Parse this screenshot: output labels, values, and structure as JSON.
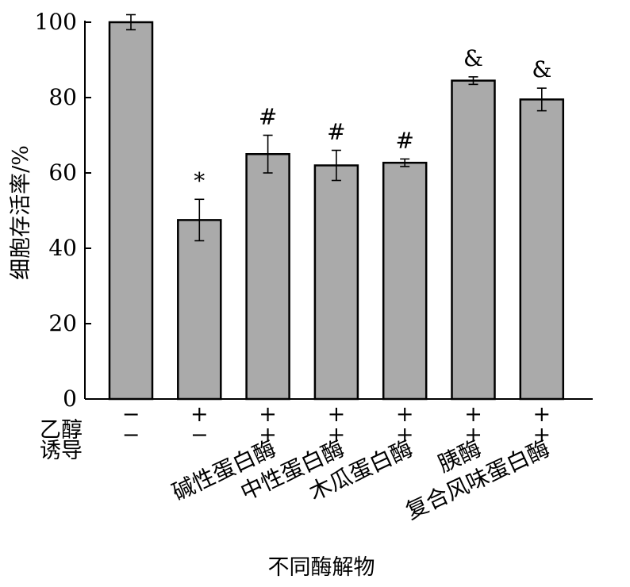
{
  "chart_data": {
    "type": "bar",
    "title": "",
    "ylabel": "细胞存活率/%",
    "xlabel": "不同酶解物",
    "ylim": [
      0,
      100
    ],
    "yticks": [
      0,
      20,
      40,
      60,
      80,
      100
    ],
    "bar_color": "#aaaaaa",
    "grid": false,
    "series": [
      {
        "values": [
          100,
          47.5,
          65,
          62,
          62.7,
          84.5,
          79.5
        ],
        "errors": [
          2,
          5.5,
          5,
          4,
          1,
          1,
          3
        ]
      }
    ],
    "significance": [
      "",
      "*",
      "#",
      "#",
      "#",
      "&",
      "&"
    ],
    "treatment_rows": [
      {
        "label": "乙醇",
        "marks": [
          "−",
          "+",
          "+",
          "+",
          "+",
          "+",
          "+"
        ]
      },
      {
        "label": "诱导",
        "marks": [
          "−",
          "−",
          "+",
          "+",
          "+",
          "+",
          "+"
        ]
      }
    ],
    "categories": [
      "",
      "",
      "碱性蛋白酶",
      "中性蛋白酶",
      "木瓜蛋白酶",
      "胰酶",
      "复合风味蛋白酶"
    ]
  }
}
